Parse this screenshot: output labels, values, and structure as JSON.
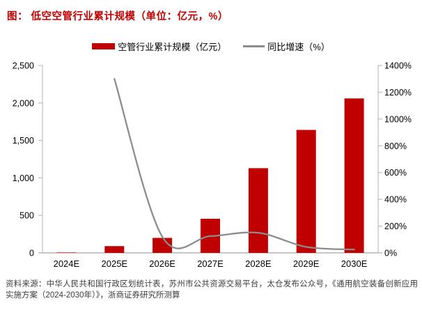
{
  "title": "图： 低空空管行业累计规模（单位：亿元，%）",
  "legend": [
    {
      "label": "空管行业累计规模（亿元）",
      "marker": "bar-swatch-icon"
    },
    {
      "label": "同比增速（%）",
      "marker": "line-swatch-icon"
    }
  ],
  "source_note": "资料来源：中华人民共和国行政区划统计表，苏州市公共资源交易平台，太仓发布公众号，《通用航空装备创新应用实施方案（2024-2030年）》，浙商证券研究所测算",
  "colors": {
    "title": "#c00000",
    "bar": "#c00000",
    "line": "#8c8c8c",
    "axis": "#bdbdbd",
    "baseline": "#a6a6a6",
    "text": "#000000",
    "source_text": "#3d3d3d"
  },
  "chart_data": {
    "type": "bar",
    "subtype": "bar+line dual axis",
    "title": "低空空管行业累计规模（单位：亿元，%）",
    "categories": [
      "2024E",
      "2025E",
      "2026E",
      "2027E",
      "2028E",
      "2029E",
      "2030E"
    ],
    "series": [
      {
        "name": "空管行业累计规模（亿元）",
        "type": "bar",
        "axis": "left",
        "color": "#c00000",
        "values": [
          6,
          90,
          200,
          455,
          1130,
          1640,
          2060
        ]
      },
      {
        "name": "同比增速（%）",
        "type": "line",
        "axis": "right",
        "color": "#8c8c8c",
        "values": [
          null,
          1300,
          120,
          125,
          150,
          45,
          25
        ]
      }
    ],
    "left_axis": {
      "min": 0,
      "max": 2500,
      "ticks": [
        "0",
        "500",
        "1,000",
        "1,500",
        "2,000",
        "2,500"
      ]
    },
    "right_axis": {
      "min": 0,
      "max": 1400,
      "ticks": [
        "0%",
        "200%",
        "400%",
        "600%",
        "800%",
        "1000%",
        "1200%",
        "1400%"
      ]
    },
    "grid": false,
    "legend_position": "top"
  }
}
